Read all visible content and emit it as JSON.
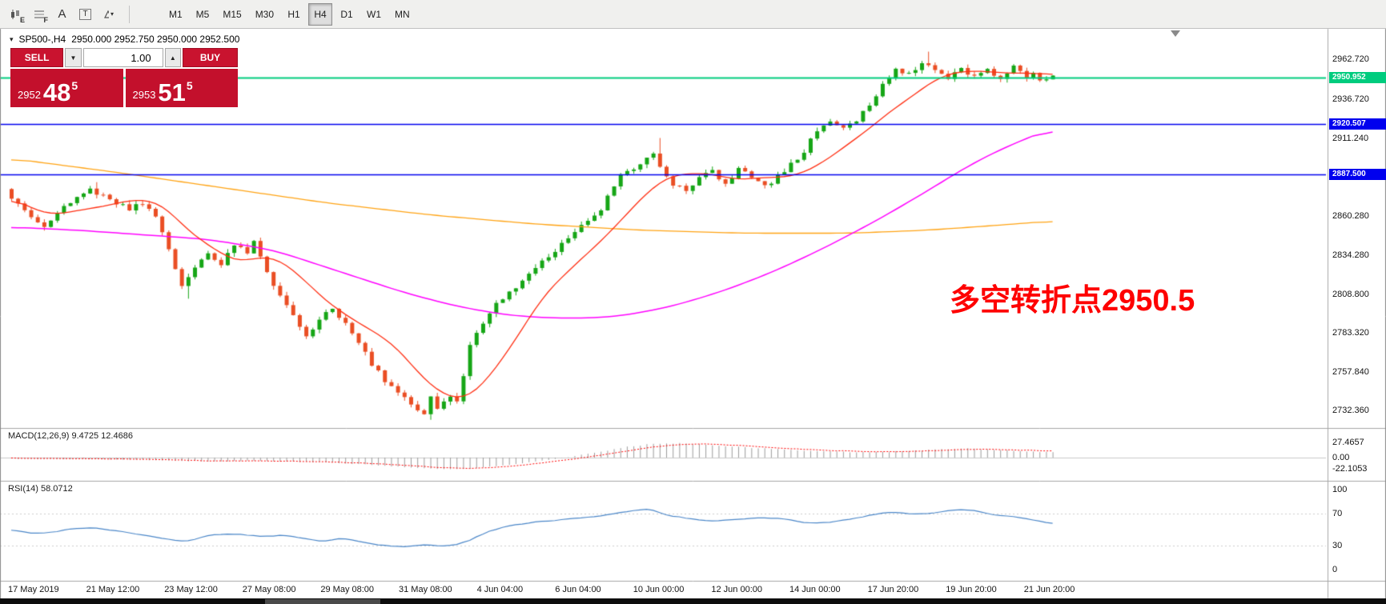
{
  "toolbar": {
    "icons": [
      {
        "id": "chart-ea-icon",
        "letter": "E"
      },
      {
        "id": "tool-f-icon",
        "letter": "F"
      },
      {
        "id": "text-label-tool-icon",
        "letter": "A"
      },
      {
        "id": "text-box-tool-icon",
        "letter": "T"
      },
      {
        "id": "drawing-tools-dropdown-icon",
        "letter": ""
      }
    ],
    "timeframes": [
      {
        "label": "M1",
        "active": false
      },
      {
        "label": "M5",
        "active": false
      },
      {
        "label": "M15",
        "active": false
      },
      {
        "label": "M30",
        "active": false
      },
      {
        "label": "H1",
        "active": false
      },
      {
        "label": "H4",
        "active": true
      },
      {
        "label": "D1",
        "active": false
      },
      {
        "label": "W1",
        "active": false
      },
      {
        "label": "MN",
        "active": false
      }
    ]
  },
  "chart_header": {
    "symbol": "SP500-,H4",
    "ohlc": "2950.000 2952.750 2950.000 2952.500"
  },
  "trade_panel": {
    "sell_label": "SELL",
    "buy_label": "BUY",
    "volume": "1.00",
    "sell_price": {
      "main": "2952",
      "big": "48",
      "sup": "5"
    },
    "buy_price": {
      "main": "2953",
      "big": "51",
      "sup": "5"
    }
  },
  "annotation": {
    "text": "多空转折点2950.5",
    "color": "#fe0000"
  },
  "indicators": {
    "macd_label": "MACD(12,26,9)",
    "macd_values": "9.4725 12.4686",
    "rsi_label": "RSI(14)",
    "rsi_value": "58.0712"
  },
  "chart_data": {
    "type": "candlestick",
    "symbol": "SP500-",
    "timeframe": "H4",
    "current_ohlc": {
      "open": 2950.0,
      "high": 2952.75,
      "low": 2950.0,
      "close": 2952.5
    },
    "y_axis": {
      "labels": [
        "2962.720",
        "2936.720",
        "2911.240",
        "2860.280",
        "2834.280",
        "2808.800",
        "2783.320",
        "2757.840",
        "2732.360"
      ]
    },
    "x_axis": {
      "labels": [
        "17 May 2019",
        "21 May 12:00",
        "23 May 12:00",
        "27 May 08:00",
        "29 May 08:00",
        "31 May 08:00",
        "4 Jun 04:00",
        "6 Jun 04:00",
        "10 Jun 00:00",
        "12 Jun 00:00",
        "14 Jun 00:00",
        "17 Jun 20:00",
        "19 Jun 20:00",
        "21 Jun 20:00"
      ]
    },
    "levels": [
      {
        "price": 2950.952,
        "label": "2950.952",
        "color": "#00cc7e",
        "line_width": 2
      },
      {
        "price": 2920.507,
        "label": "2920.507",
        "color": "#0000ee",
        "line_width": 1.4
      },
      {
        "price": 2887.5,
        "label": "2887.500",
        "color": "#0000ee",
        "line_width": 1.4
      }
    ],
    "candles_n": 160,
    "price_waypoints": [
      [
        0,
        2878
      ],
      [
        2,
        2868
      ],
      [
        4,
        2858
      ],
      [
        6,
        2852
      ],
      [
        8,
        2863
      ],
      [
        10,
        2870
      ],
      [
        13,
        2877
      ],
      [
        16,
        2871
      ],
      [
        19,
        2865
      ],
      [
        21,
        2869
      ],
      [
        23,
        2860
      ],
      [
        25,
        2838
      ],
      [
        27,
        2815
      ],
      [
        29,
        2825
      ],
      [
        31,
        2836
      ],
      [
        33,
        2828
      ],
      [
        35,
        2842
      ],
      [
        37,
        2835
      ],
      [
        38,
        2843
      ],
      [
        40,
        2822
      ],
      [
        42,
        2808
      ],
      [
        44,
        2796
      ],
      [
        46,
        2780
      ],
      [
        48,
        2793
      ],
      [
        50,
        2801
      ],
      [
        52,
        2789
      ],
      [
        54,
        2776
      ],
      [
        56,
        2763
      ],
      [
        58,
        2752
      ],
      [
        60,
        2744
      ],
      [
        62,
        2737
      ],
      [
        64,
        2731
      ],
      [
        65,
        2742
      ],
      [
        66,
        2735
      ],
      [
        68,
        2743
      ],
      [
        69,
        2737
      ],
      [
        70,
        2755
      ],
      [
        71,
        2776
      ],
      [
        73,
        2791
      ],
      [
        75,
        2803
      ],
      [
        77,
        2809
      ],
      [
        79,
        2818
      ],
      [
        81,
        2826
      ],
      [
        83,
        2833
      ],
      [
        85,
        2841
      ],
      [
        87,
        2849
      ],
      [
        89,
        2857
      ],
      [
        91,
        2864
      ],
      [
        92,
        2874
      ],
      [
        94,
        2887
      ],
      [
        96,
        2891
      ],
      [
        98,
        2897
      ],
      [
        99,
        2902
      ],
      [
        100,
        2891
      ],
      [
        102,
        2881
      ],
      [
        104,
        2877
      ],
      [
        106,
        2885
      ],
      [
        108,
        2889
      ],
      [
        110,
        2881
      ],
      [
        112,
        2891
      ],
      [
        114,
        2887
      ],
      [
        116,
        2879
      ],
      [
        118,
        2887
      ],
      [
        120,
        2894
      ],
      [
        122,
        2903
      ],
      [
        124,
        2916
      ],
      [
        126,
        2921
      ],
      [
        128,
        2917
      ],
      [
        130,
        2924
      ],
      [
        132,
        2933
      ],
      [
        134,
        2946
      ],
      [
        136,
        2956
      ],
      [
        138,
        2953
      ],
      [
        140,
        2961
      ],
      [
        142,
        2955
      ],
      [
        144,
        2950
      ],
      [
        146,
        2958
      ],
      [
        148,
        2951
      ],
      [
        150,
        2957
      ],
      [
        152,
        2950
      ],
      [
        154,
        2958
      ],
      [
        156,
        2951
      ],
      [
        157,
        2955
      ],
      [
        158,
        2950
      ],
      [
        159,
        2952.5
      ]
    ],
    "wick_events": [
      [
        13,
        "h",
        2882.5
      ],
      [
        27,
        "l",
        2806
      ],
      [
        64,
        "l",
        2726.5
      ],
      [
        99,
        "h",
        2911.5
      ],
      [
        140,
        "h",
        2968.2
      ]
    ],
    "moving_averages": [
      {
        "name": "ma-fast",
        "color": "#ff2e12",
        "derived": "sma12_of_closes"
      },
      {
        "name": "ma-mid",
        "color": "#ff00ff",
        "waypoints": [
          [
            0,
            2853
          ],
          [
            10,
            2851
          ],
          [
            20,
            2848
          ],
          [
            30,
            2845
          ],
          [
            40,
            2838
          ],
          [
            50,
            2824
          ],
          [
            60,
            2810
          ],
          [
            68,
            2801
          ],
          [
            76,
            2795
          ],
          [
            84,
            2793
          ],
          [
            92,
            2794
          ],
          [
            100,
            2800
          ],
          [
            108,
            2810
          ],
          [
            116,
            2823
          ],
          [
            124,
            2839
          ],
          [
            132,
            2857
          ],
          [
            140,
            2877
          ],
          [
            146,
            2893
          ],
          [
            152,
            2906
          ],
          [
            159,
            2918
          ]
        ]
      },
      {
        "name": "ma-slow",
        "color": "#ffa313",
        "waypoints": [
          [
            0,
            2898
          ],
          [
            16,
            2889
          ],
          [
            32,
            2879
          ],
          [
            48,
            2869
          ],
          [
            64,
            2861
          ],
          [
            80,
            2855
          ],
          [
            96,
            2851
          ],
          [
            112,
            2849
          ],
          [
            128,
            2849
          ],
          [
            140,
            2851
          ],
          [
            150,
            2854
          ],
          [
            159,
            2857
          ]
        ]
      }
    ],
    "macd": {
      "scale_labels": [
        "27.4657",
        "0.00",
        "-22.1053"
      ],
      "range": [
        -22.1053,
        27.4657
      ],
      "hist_color": "#9b9b9b",
      "signal_color": "#ff0000",
      "hist_waypoints": [
        [
          0,
          -1.5
        ],
        [
          6,
          -2.5
        ],
        [
          12,
          -2
        ],
        [
          18,
          -3.5
        ],
        [
          24,
          -5
        ],
        [
          30,
          -7.5
        ],
        [
          36,
          -6
        ],
        [
          42,
          -7
        ],
        [
          48,
          -9
        ],
        [
          54,
          -13
        ],
        [
          60,
          -18
        ],
        [
          66,
          -22
        ],
        [
          70,
          -21
        ],
        [
          74,
          -16
        ],
        [
          78,
          -10
        ],
        [
          82,
          -4
        ],
        [
          86,
          3
        ],
        [
          90,
          11
        ],
        [
          94,
          20
        ],
        [
          98,
          26.5
        ],
        [
          102,
          27
        ],
        [
          106,
          24.5
        ],
        [
          110,
          21
        ],
        [
          114,
          17.5
        ],
        [
          118,
          15
        ],
        [
          122,
          13
        ],
        [
          126,
          11
        ],
        [
          130,
          10
        ],
        [
          134,
          11
        ],
        [
          138,
          13
        ],
        [
          142,
          15.5
        ],
        [
          146,
          17
        ],
        [
          150,
          15
        ],
        [
          154,
          12
        ],
        [
          159,
          9.47
        ]
      ],
      "signal_waypoints": [
        [
          0,
          -1
        ],
        [
          6,
          -1.8
        ],
        [
          12,
          -2
        ],
        [
          18,
          -2.8
        ],
        [
          24,
          -4
        ],
        [
          30,
          -6
        ],
        [
          36,
          -6.2
        ],
        [
          42,
          -6.5
        ],
        [
          48,
          -7.8
        ],
        [
          54,
          -10.5
        ],
        [
          60,
          -14.5
        ],
        [
          66,
          -19
        ],
        [
          70,
          -20.5
        ],
        [
          74,
          -18.5
        ],
        [
          78,
          -14
        ],
        [
          82,
          -8.5
        ],
        [
          86,
          -2.5
        ],
        [
          90,
          4.5
        ],
        [
          94,
          12.5
        ],
        [
          98,
          20
        ],
        [
          102,
          24.5
        ],
        [
          106,
          25.5
        ],
        [
          110,
          23.5
        ],
        [
          114,
          20.5
        ],
        [
          118,
          17.5
        ],
        [
          122,
          15
        ],
        [
          126,
          13
        ],
        [
          130,
          11.5
        ],
        [
          134,
          11
        ],
        [
          138,
          12
        ],
        [
          142,
          13.5
        ],
        [
          146,
          15.5
        ],
        [
          150,
          15.5
        ],
        [
          154,
          14
        ],
        [
          159,
          12.47
        ]
      ]
    },
    "rsi": {
      "scale_labels": [
        "100",
        "70",
        "30",
        "0"
      ],
      "levels": [
        70,
        30
      ],
      "color": "#4a86c8",
      "waypoints": [
        [
          0,
          50
        ],
        [
          3,
          45
        ],
        [
          6,
          47
        ],
        [
          9,
          51
        ],
        [
          12,
          53
        ],
        [
          15,
          50
        ],
        [
          18,
          46
        ],
        [
          21,
          42
        ],
        [
          24,
          37
        ],
        [
          27,
          35
        ],
        [
          30,
          43
        ],
        [
          33,
          45
        ],
        [
          36,
          43
        ],
        [
          39,
          41
        ],
        [
          42,
          43
        ],
        [
          45,
          38
        ],
        [
          48,
          36
        ],
        [
          51,
          39
        ],
        [
          54,
          33
        ],
        [
          57,
          30
        ],
        [
          60,
          28
        ],
        [
          63,
          32
        ],
        [
          66,
          29
        ],
        [
          69,
          33
        ],
        [
          72,
          45
        ],
        [
          75,
          53
        ],
        [
          78,
          57
        ],
        [
          81,
          60
        ],
        [
          84,
          63
        ],
        [
          87,
          64
        ],
        [
          90,
          68
        ],
        [
          93,
          71
        ],
        [
          96,
          74
        ],
        [
          98,
          75
        ],
        [
          100,
          68
        ],
        [
          103,
          64
        ],
        [
          106,
          61
        ],
        [
          109,
          62
        ],
        [
          112,
          64
        ],
        [
          115,
          65
        ],
        [
          118,
          63
        ],
        [
          121,
          59
        ],
        [
          124,
          58
        ],
        [
          127,
          61
        ],
        [
          130,
          66
        ],
        [
          133,
          70
        ],
        [
          136,
          71
        ],
        [
          139,
          69
        ],
        [
          142,
          72
        ],
        [
          145,
          76
        ],
        [
          147,
          74
        ],
        [
          150,
          68
        ],
        [
          153,
          65
        ],
        [
          156,
          63
        ],
        [
          159,
          58.07
        ]
      ]
    },
    "colors": {
      "bull": "#16a616",
      "bear": "#ea4e24",
      "background": "#ffffff"
    }
  }
}
